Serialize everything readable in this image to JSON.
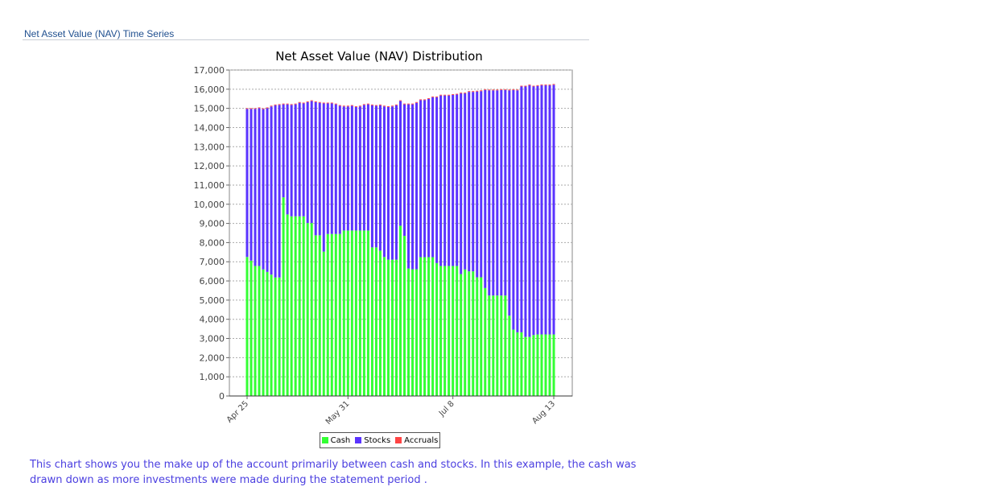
{
  "section_title": "Net Asset Value (NAV) Time Series",
  "caption": "This chart shows you the make up of the account primarily between cash and stocks. In this example, the cash was drawn down as more investments were made during the statement period .",
  "colors": {
    "cash": "#33ff33",
    "stocks": "#5a33ff",
    "accruals": "#ff4444"
  },
  "chart_data": {
    "type": "bar",
    "stacked": true,
    "title": "Net Asset Value (NAV) Distribution",
    "xlabel": "",
    "ylabel": "",
    "ylim": [
      0,
      17000
    ],
    "yticks": [
      "0",
      "1,000",
      "2,000",
      "3,000",
      "4,000",
      "5,000",
      "6,000",
      "7,000",
      "8,000",
      "9,000",
      "10,000",
      "11,000",
      "12,000",
      "13,000",
      "14,000",
      "15,000",
      "16,000",
      "17,000"
    ],
    "xticks": [
      {
        "label": "Apr 25",
        "index": 0
      },
      {
        "label": "May 31",
        "index": 25
      },
      {
        "label": "Jul 8",
        "index": 51
      },
      {
        "label": "Aug 13",
        "index": 76
      }
    ],
    "legend": {
      "position": "bottom",
      "entries": [
        "Cash",
        "Stocks",
        "Accruals"
      ]
    },
    "grid": true,
    "series": [
      {
        "name": "Cash",
        "values": [
          7250,
          7060,
          6780,
          6780,
          6600,
          6470,
          6330,
          6180,
          6180,
          10360,
          9470,
          9370,
          9370,
          9370,
          9370,
          9020,
          9020,
          8380,
          8380,
          7530,
          8450,
          8450,
          8450,
          8450,
          8630,
          8630,
          8630,
          8630,
          8630,
          8630,
          8630,
          7750,
          7750,
          7580,
          7250,
          7110,
          7110,
          7110,
          8880,
          8350,
          6650,
          6610,
          6610,
          7240,
          7240,
          7240,
          7240,
          6930,
          6780,
          6780,
          6780,
          6780,
          6780,
          6360,
          6600,
          6500,
          6500,
          6190,
          6190,
          5630,
          5240,
          5240,
          5240,
          5240,
          5240,
          4190,
          3460,
          3320,
          3320,
          3080,
          3080,
          3180,
          3210,
          3210,
          3210,
          3210,
          3210
        ]
      },
      {
        "name": "Stocks",
        "values": [
          7720,
          7910,
          8190,
          8230,
          8360,
          8540,
          8770,
          8980,
          9000,
          4850,
          5740,
          5810,
          5840,
          5920,
          5890,
          6300,
          6360,
          6940,
          6910,
          7730,
          6810,
          6810,
          6760,
          6680,
          6470,
          6470,
          6500,
          6440,
          6470,
          6550,
          6580,
          7410,
          7380,
          7580,
          7850,
          7960,
          7990,
          8050,
          6500,
          6860,
          8560,
          8600,
          8680,
          8190,
          8190,
          8250,
          8340,
          8650,
          8890,
          8890,
          8890,
          8920,
          8940,
          9420,
          9180,
          9360,
          9360,
          9690,
          9710,
          10330,
          10700,
          10700,
          10700,
          10720,
          10720,
          11750,
          12500,
          12620,
          12820,
          13060,
          13120,
          12960,
          12960,
          12990,
          12990,
          12990,
          13020
        ]
      },
      {
        "name": "Accruals",
        "values": [
          40,
          40,
          40,
          40,
          40,
          40,
          40,
          40,
          40,
          40,
          40,
          40,
          40,
          40,
          40,
          40,
          40,
          40,
          40,
          40,
          40,
          40,
          40,
          40,
          40,
          40,
          40,
          40,
          40,
          40,
          40,
          40,
          40,
          40,
          40,
          40,
          40,
          40,
          40,
          40,
          40,
          40,
          40,
          40,
          40,
          40,
          40,
          40,
          40,
          40,
          40,
          40,
          40,
          40,
          40,
          40,
          40,
          40,
          40,
          40,
          40,
          40,
          40,
          40,
          40,
          40,
          40,
          40,
          40,
          40,
          40,
          40,
          40,
          40,
          40,
          40,
          40
        ]
      }
    ]
  }
}
